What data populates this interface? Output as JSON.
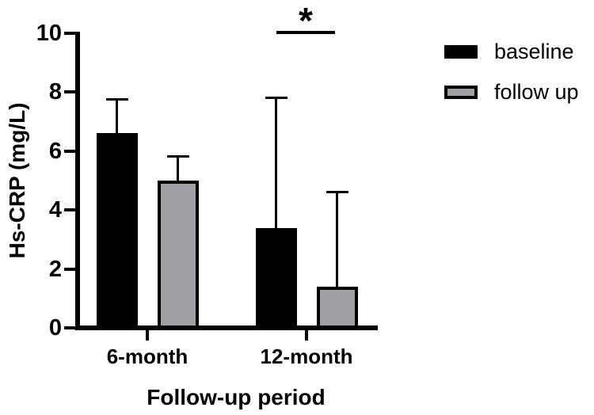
{
  "chart_data": {
    "type": "bar",
    "title": "",
    "xlabel": "Follow-up period",
    "ylabel": "Hs-CRP (mg/L)",
    "categories": [
      "6-month",
      "12-month"
    ],
    "series": [
      {
        "name": "baseline",
        "color": "#000000",
        "border_color": "#000000",
        "border_px": 0,
        "values": [
          6.6,
          3.4
        ],
        "error_top": [
          7.75,
          7.8
        ]
      },
      {
        "name": "follow up",
        "color": "#a0a0a4",
        "border_color": "#000000",
        "border_px": 4,
        "values": [
          5.0,
          1.4
        ],
        "error_top": [
          5.8,
          4.6
        ]
      }
    ],
    "ylim": [
      0,
      10
    ],
    "yticks": [
      0,
      2,
      4,
      6,
      8,
      10
    ],
    "grid": false,
    "legend_position": "right",
    "error_bars": "upper only, capped",
    "significance": [
      {
        "category": "12-month",
        "label": "*"
      }
    ]
  },
  "colors": {
    "background": "#ffffff",
    "axis": "#000000",
    "text": "#000000",
    "gray_fill": "#a0a0a4"
  }
}
